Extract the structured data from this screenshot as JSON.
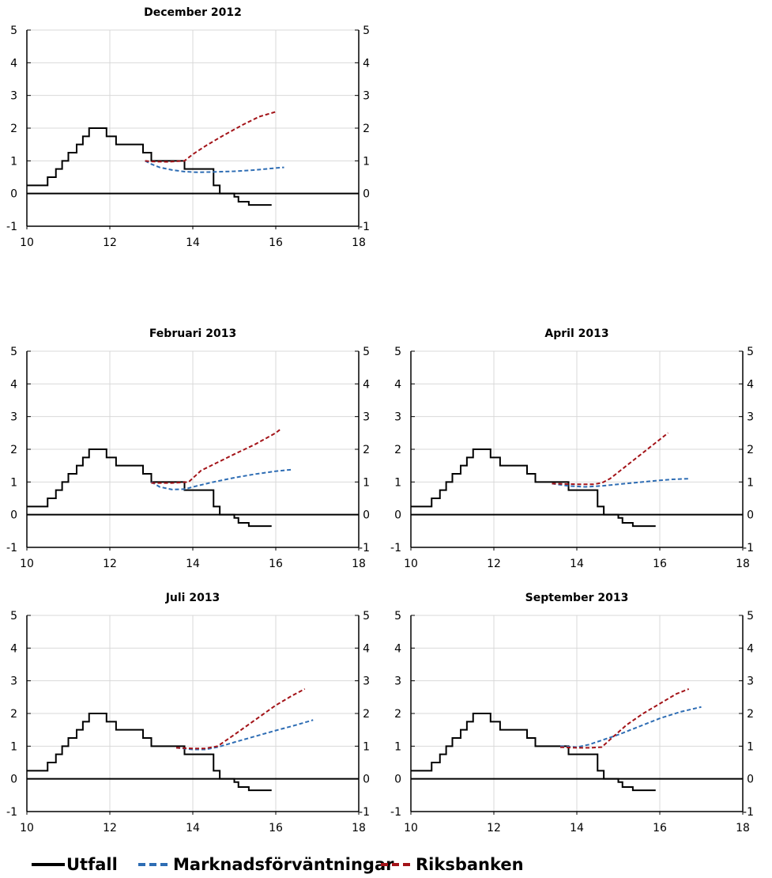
{
  "legend": {
    "placement": "bottom",
    "items": [
      {
        "label": "Utfall",
        "color": "#000000",
        "dash": "solid"
      },
      {
        "label": "Marknadsförväntningar",
        "color": "#2e6db4",
        "dash": "dashed"
      },
      {
        "label": "Riksbanken",
        "color": "#a31318",
        "dash": "dashed"
      }
    ]
  },
  "chart_data": [
    {
      "type": "line",
      "title": "December 2012",
      "xlim": [
        10,
        18
      ],
      "ylim": [
        -1,
        5
      ],
      "x_ticks": [
        "10",
        "12",
        "14",
        "16",
        "18"
      ],
      "y_ticks": [
        "-1",
        "0",
        "1",
        "2",
        "3",
        "4",
        "5"
      ],
      "grid": true,
      "series": [
        {
          "name": "Utfall",
          "color": "#000000",
          "dash": "solid",
          "step": true,
          "x": [
            9.8,
            10.5,
            10.7,
            10.85,
            11.0,
            11.2,
            11.35,
            11.5,
            11.75,
            11.92,
            12.0,
            12.15,
            12.35,
            12.5,
            12.65,
            12.8,
            13.0,
            13.2,
            13.35,
            13.5,
            13.65,
            13.8,
            14.0,
            14.2,
            14.35,
            14.5,
            14.65,
            14.8,
            15.0,
            15.1,
            15.2,
            15.35,
            15.5,
            15.65,
            15.8
          ],
          "y": [
            0.25,
            0.5,
            0.75,
            1.0,
            1.25,
            1.5,
            1.75,
            2.0,
            2.0,
            1.75,
            1.75,
            1.5,
            1.5,
            1.5,
            1.5,
            1.25,
            1.0,
            1.0,
            1.0,
            1.0,
            1.0,
            0.75,
            0.75,
            0.75,
            0.75,
            0.25,
            0.0,
            0.0,
            -0.1,
            -0.25,
            -0.25,
            -0.35,
            -0.35,
            -0.35,
            -0.35
          ]
        },
        {
          "name": "Marknadsförväntningar",
          "color": "#2e6db4",
          "dash": "dashed",
          "x": [
            12.85,
            13.0,
            13.2,
            13.5,
            13.8,
            14.1,
            14.5,
            15.0,
            15.5,
            16.0,
            16.2
          ],
          "y": [
            1.0,
            0.9,
            0.8,
            0.72,
            0.67,
            0.65,
            0.66,
            0.68,
            0.72,
            0.78,
            0.8
          ]
        },
        {
          "name": "Riksbanken",
          "color": "#a31318",
          "dash": "dashed",
          "x": [
            12.85,
            13.0,
            13.4,
            13.8,
            14.0,
            14.3,
            14.7,
            15.2,
            15.6,
            16.0
          ],
          "y": [
            1.0,
            0.98,
            0.97,
            1.0,
            1.2,
            1.45,
            1.75,
            2.1,
            2.35,
            2.5
          ]
        }
      ]
    },
    {
      "type": "line",
      "title": "Februari 2013",
      "xlim": [
        10,
        18
      ],
      "ylim": [
        -1,
        5
      ],
      "x_ticks": [
        "10",
        "12",
        "14",
        "16",
        "18"
      ],
      "y_ticks": [
        "-1",
        "0",
        "1",
        "2",
        "3",
        "4",
        "5"
      ],
      "grid": true,
      "series": [
        {
          "name": "Utfall",
          "color": "#000000",
          "dash": "solid",
          "step": true,
          "x": [
            9.8,
            10.5,
            10.7,
            10.85,
            11.0,
            11.2,
            11.35,
            11.5,
            11.75,
            11.92,
            12.0,
            12.15,
            12.35,
            12.5,
            12.65,
            12.8,
            13.0,
            13.2,
            13.35,
            13.5,
            13.65,
            13.8,
            14.0,
            14.2,
            14.35,
            14.5,
            14.65,
            14.8,
            15.0,
            15.1,
            15.2,
            15.35,
            15.5,
            15.65,
            15.8
          ],
          "y": [
            0.25,
            0.5,
            0.75,
            1.0,
            1.25,
            1.5,
            1.75,
            2.0,
            2.0,
            1.75,
            1.75,
            1.5,
            1.5,
            1.5,
            1.5,
            1.25,
            1.0,
            1.0,
            1.0,
            1.0,
            1.0,
            0.75,
            0.75,
            0.75,
            0.75,
            0.25,
            0.0,
            0.0,
            -0.1,
            -0.25,
            -0.25,
            -0.35,
            -0.35,
            -0.35,
            -0.35
          ]
        },
        {
          "name": "Marknadsförväntningar",
          "color": "#2e6db4",
          "dash": "dashed",
          "x": [
            13.0,
            13.2,
            13.5,
            13.8,
            14.1,
            14.5,
            15.0,
            15.5,
            16.0,
            16.4
          ],
          "y": [
            1.0,
            0.85,
            0.77,
            0.78,
            0.88,
            1.0,
            1.13,
            1.24,
            1.33,
            1.38
          ]
        },
        {
          "name": "Riksbanken",
          "color": "#a31318",
          "dash": "dashed",
          "x": [
            13.0,
            13.5,
            13.9,
            14.2,
            14.6,
            15.0,
            15.5,
            16.0,
            16.1
          ],
          "y": [
            0.97,
            0.97,
            1.0,
            1.35,
            1.6,
            1.85,
            2.15,
            2.5,
            2.6
          ]
        }
      ]
    },
    {
      "type": "line",
      "title": "April 2013",
      "xlim": [
        10,
        18
      ],
      "ylim": [
        -1,
        5
      ],
      "x_ticks": [
        "10",
        "12",
        "14",
        "16",
        "18"
      ],
      "y_ticks": [
        "-1",
        "0",
        "1",
        "2",
        "3",
        "4",
        "5"
      ],
      "grid": true,
      "series": [
        {
          "name": "Utfall",
          "color": "#000000",
          "dash": "solid",
          "step": true,
          "x": [
            9.8,
            10.5,
            10.7,
            10.85,
            11.0,
            11.2,
            11.35,
            11.5,
            11.75,
            11.92,
            12.0,
            12.15,
            12.35,
            12.5,
            12.65,
            12.8,
            13.0,
            13.2,
            13.35,
            13.5,
            13.65,
            13.8,
            14.0,
            14.2,
            14.35,
            14.5,
            14.65,
            14.8,
            15.0,
            15.1,
            15.2,
            15.35,
            15.5,
            15.65,
            15.8
          ],
          "y": [
            0.25,
            0.5,
            0.75,
            1.0,
            1.25,
            1.5,
            1.75,
            2.0,
            2.0,
            1.75,
            1.75,
            1.5,
            1.5,
            1.5,
            1.5,
            1.25,
            1.0,
            1.0,
            1.0,
            1.0,
            1.0,
            0.75,
            0.75,
            0.75,
            0.75,
            0.25,
            0.0,
            0.0,
            -0.1,
            -0.25,
            -0.25,
            -0.35,
            -0.35,
            -0.35,
            -0.35
          ]
        },
        {
          "name": "Marknadsförväntningar",
          "color": "#2e6db4",
          "dash": "dashed",
          "x": [
            13.4,
            13.8,
            14.2,
            14.6,
            15.0,
            15.5,
            16.0,
            16.3,
            16.7
          ],
          "y": [
            0.95,
            0.88,
            0.85,
            0.88,
            0.93,
            0.99,
            1.05,
            1.08,
            1.1
          ]
        },
        {
          "name": "Riksbanken",
          "color": "#a31318",
          "dash": "dashed",
          "x": [
            13.4,
            14.0,
            14.4,
            14.6,
            14.8,
            15.2,
            15.6,
            16.0,
            16.2
          ],
          "y": [
            0.95,
            0.93,
            0.93,
            0.97,
            1.1,
            1.5,
            1.9,
            2.3,
            2.5
          ]
        }
      ]
    },
    {
      "type": "line",
      "title": "Juli 2013",
      "xlim": [
        10,
        18
      ],
      "ylim": [
        -1,
        5
      ],
      "x_ticks": [
        "10",
        "12",
        "14",
        "16",
        "18"
      ],
      "y_ticks": [
        "-1",
        "0",
        "1",
        "2",
        "3",
        "4",
        "5"
      ],
      "grid": true,
      "series": [
        {
          "name": "Utfall",
          "color": "#000000",
          "dash": "solid",
          "step": true,
          "x": [
            9.8,
            10.5,
            10.7,
            10.85,
            11.0,
            11.2,
            11.35,
            11.5,
            11.75,
            11.92,
            12.0,
            12.15,
            12.35,
            12.5,
            12.65,
            12.8,
            13.0,
            13.2,
            13.35,
            13.5,
            13.65,
            13.8,
            14.0,
            14.2,
            14.35,
            14.5,
            14.65,
            14.8,
            15.0,
            15.1,
            15.2,
            15.35,
            15.5,
            15.65,
            15.8
          ],
          "y": [
            0.25,
            0.5,
            0.75,
            1.0,
            1.25,
            1.5,
            1.75,
            2.0,
            2.0,
            1.75,
            1.75,
            1.5,
            1.5,
            1.5,
            1.5,
            1.25,
            1.0,
            1.0,
            1.0,
            1.0,
            1.0,
            0.75,
            0.75,
            0.75,
            0.75,
            0.25,
            0.0,
            0.0,
            -0.1,
            -0.25,
            -0.25,
            -0.35,
            -0.35,
            -0.35,
            -0.35
          ]
        },
        {
          "name": "Marknadsförväntningar",
          "color": "#2e6db4",
          "dash": "dashed",
          "x": [
            13.6,
            14.0,
            14.3,
            14.6,
            15.0,
            15.5,
            16.0,
            16.5,
            16.9
          ],
          "y": [
            0.95,
            0.9,
            0.9,
            0.97,
            1.12,
            1.3,
            1.48,
            1.65,
            1.8
          ]
        },
        {
          "name": "Riksbanken",
          "color": "#a31318",
          "dash": "dashed",
          "x": [
            13.6,
            14.0,
            14.3,
            14.6,
            15.0,
            15.5,
            16.0,
            16.4,
            16.7
          ],
          "y": [
            0.95,
            0.93,
            0.93,
            1.0,
            1.35,
            1.8,
            2.25,
            2.55,
            2.75
          ]
        }
      ]
    },
    {
      "type": "line",
      "title": "September 2013",
      "xlim": [
        10,
        18
      ],
      "ylim": [
        -1,
        5
      ],
      "x_ticks": [
        "10",
        "12",
        "14",
        "16",
        "18"
      ],
      "y_ticks": [
        "-1",
        "0",
        "1",
        "2",
        "3",
        "4",
        "5"
      ],
      "grid": true,
      "series": [
        {
          "name": "Utfall",
          "color": "#000000",
          "dash": "solid",
          "step": true,
          "x": [
            9.8,
            10.5,
            10.7,
            10.85,
            11.0,
            11.2,
            11.35,
            11.5,
            11.75,
            11.92,
            12.0,
            12.15,
            12.35,
            12.5,
            12.65,
            12.8,
            13.0,
            13.2,
            13.35,
            13.5,
            13.65,
            13.8,
            14.0,
            14.2,
            14.35,
            14.5,
            14.65,
            14.8,
            15.0,
            15.1,
            15.2,
            15.35,
            15.5,
            15.65,
            15.8
          ],
          "y": [
            0.25,
            0.5,
            0.75,
            1.0,
            1.25,
            1.5,
            1.75,
            2.0,
            2.0,
            1.75,
            1.75,
            1.5,
            1.5,
            1.5,
            1.5,
            1.25,
            1.0,
            1.0,
            1.0,
            1.0,
            1.0,
            0.75,
            0.75,
            0.75,
            0.75,
            0.25,
            0.0,
            0.0,
            -0.1,
            -0.25,
            -0.25,
            -0.35,
            -0.35,
            -0.35,
            -0.35
          ]
        },
        {
          "name": "Marknadsförväntningar",
          "color": "#2e6db4",
          "dash": "dashed",
          "x": [
            13.6,
            14.0,
            14.3,
            14.6,
            15.0,
            15.5,
            16.0,
            16.5,
            17.0
          ],
          "y": [
            1.0,
            0.97,
            1.05,
            1.18,
            1.35,
            1.6,
            1.85,
            2.05,
            2.2
          ]
        },
        {
          "name": "Riksbanken",
          "color": "#a31318",
          "dash": "dashed",
          "x": [
            13.6,
            14.0,
            14.3,
            14.6,
            14.8,
            15.2,
            15.6,
            16.0,
            16.4,
            16.7
          ],
          "y": [
            0.97,
            0.95,
            0.95,
            0.97,
            1.2,
            1.65,
            2.0,
            2.3,
            2.6,
            2.75
          ]
        }
      ]
    }
  ]
}
